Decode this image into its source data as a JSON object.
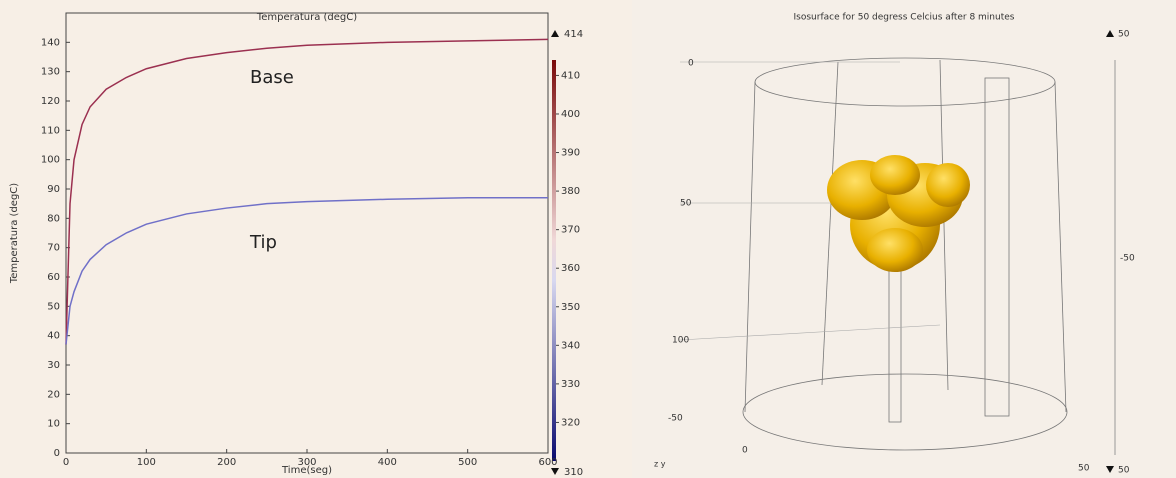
{
  "chart_data": {
    "type": "line",
    "title": "Temperatura (degC)",
    "x_label": "Time(seg)",
    "y_label": "Temperatura (degC)",
    "x": [
      0,
      5,
      10,
      20,
      30,
      50,
      75,
      100,
      150,
      200,
      250,
      300,
      400,
      500,
      600
    ],
    "series": [
      {
        "name": "Base",
        "color": "#9b3050",
        "values": [
          37,
          85,
          100,
          112,
          118,
          124,
          128,
          131,
          134.5,
          136.5,
          138,
          139,
          140,
          140.5,
          141
        ]
      },
      {
        "name": "Tip",
        "color": "#7070c8",
        "values": [
          37,
          50,
          55,
          62,
          66,
          71,
          75,
          78,
          81.5,
          83.5,
          85,
          85.7,
          86.5,
          87,
          87
        ]
      }
    ],
    "xlim": [
      0,
      600
    ],
    "xticks": [
      0,
      100,
      200,
      300,
      400,
      500,
      600
    ],
    "ylim": [
      0,
      150
    ],
    "yticks": [
      0,
      10,
      20,
      30,
      40,
      50,
      60,
      70,
      80,
      90,
      100,
      110,
      120,
      130,
      140
    ],
    "colorbar": {
      "lim": [
        310,
        414
      ],
      "ticks": [
        320,
        330,
        340,
        350,
        360,
        370,
        380,
        390,
        400,
        410
      ]
    }
  },
  "right_panel": {
    "title": "Isosurface for 50 degress Celcius after 8 minutes",
    "labels": [
      "50",
      "0",
      "50",
      "100",
      "-50",
      "0",
      "50",
      "-50",
      "50"
    ]
  }
}
